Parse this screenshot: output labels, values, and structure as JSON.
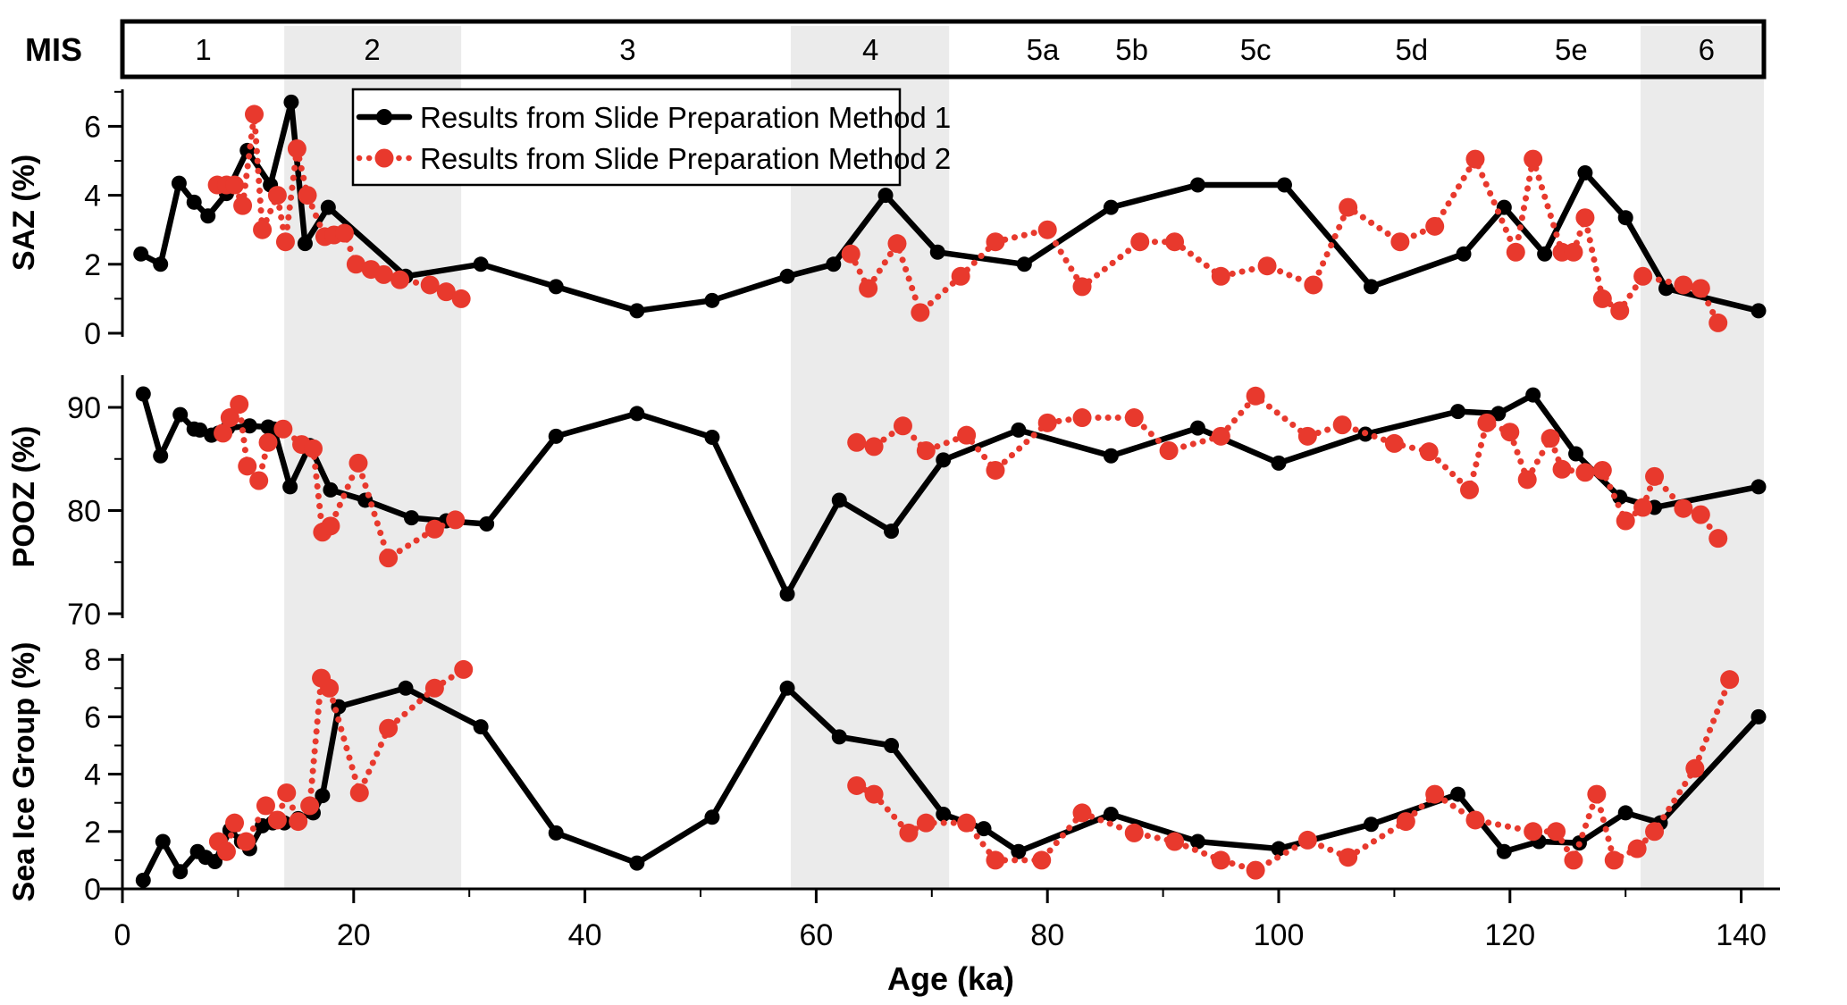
{
  "figure": {
    "mis_bar": {
      "label": "MIS",
      "stages": [
        {
          "label": "1",
          "center_ka": 7.0
        },
        {
          "label": "2",
          "center_ka": 21.6
        },
        {
          "label": "3",
          "center_ka": 43.7
        },
        {
          "label": "4",
          "center_ka": 64.7
        },
        {
          "label": "5a",
          "center_ka": 79.6
        },
        {
          "label": "5b",
          "center_ka": 87.3
        },
        {
          "label": "5c",
          "center_ka": 98.0
        },
        {
          "label": "5d",
          "center_ka": 111.5
        },
        {
          "label": "5e",
          "center_ka": 125.3
        },
        {
          "label": "6",
          "center_ka": 137.0
        }
      ],
      "shaded_stage_bands_ka": [
        [
          14.0,
          29.3
        ],
        [
          57.8,
          71.5
        ],
        [
          131.3,
          142.0
        ]
      ]
    },
    "legend": {
      "items": [
        {
          "series": "method1",
          "label": "Results from Slide Preparation Method 1"
        },
        {
          "series": "method2",
          "label": "Results from Slide Preparation Method 2"
        }
      ]
    },
    "x_axis": {
      "title": "Age (ka)",
      "major_ticks": [
        0,
        20,
        40,
        60,
        80,
        100,
        120,
        140
      ],
      "minor_ticks": [
        10,
        30,
        50,
        70,
        90,
        110,
        130
      ],
      "range_ka": [
        0,
        142
      ]
    },
    "colors": {
      "method1": "#000000",
      "method2": "#e8392d",
      "shaded_band": "#ebebeb",
      "background": "#ffffff"
    }
  },
  "chart_data": [
    {
      "type": "line",
      "title": "SAZ",
      "ylabel": "SAZ (%)",
      "xlabel": "Age (ka)",
      "ylim": [
        0,
        7.2
      ],
      "yticks_major": [
        0,
        2,
        4,
        6
      ],
      "yticks_minor": [
        1,
        3,
        5,
        7
      ],
      "series": [
        {
          "name": "Results from Slide Preparation Method 1",
          "points": [
            [
              1.6,
              2.3
            ],
            [
              3.3,
              2.0
            ],
            [
              4.9,
              4.35
            ],
            [
              6.2,
              3.8
            ],
            [
              7.4,
              3.4
            ],
            [
              9.0,
              4.05
            ],
            [
              10.8,
              5.3
            ],
            [
              12.8,
              4.3
            ],
            [
              14.6,
              6.7
            ],
            [
              15.8,
              2.6
            ],
            [
              17.8,
              3.65
            ],
            [
              24.5,
              1.65
            ],
            [
              31.0,
              2.0
            ],
            [
              37.5,
              1.35
            ],
            [
              44.5,
              0.65
            ],
            [
              51.0,
              0.95
            ],
            [
              57.5,
              1.65
            ],
            [
              61.5,
              2.0
            ],
            [
              66.0,
              4.0
            ],
            [
              70.5,
              2.35
            ],
            [
              78.0,
              2.0
            ],
            [
              85.5,
              3.65
            ],
            [
              93.0,
              4.3
            ],
            [
              100.5,
              4.3
            ],
            [
              108.0,
              1.35
            ],
            [
              116.0,
              2.3
            ],
            [
              119.5,
              3.65
            ],
            [
              123.0,
              2.3
            ],
            [
              126.5,
              4.65
            ],
            [
              130.0,
              3.35
            ],
            [
              133.5,
              1.3
            ],
            [
              141.5,
              0.65
            ]
          ]
        },
        {
          "name": "Results from Slide Preparation Method 2",
          "points": [
            [
              8.2,
              4.3
            ],
            [
              9.0,
              4.3
            ],
            [
              9.7,
              4.3
            ],
            [
              10.4,
              3.7
            ],
            [
              11.4,
              6.35
            ],
            [
              12.1,
              3.0
            ],
            [
              13.4,
              4.0
            ],
            [
              14.1,
              2.65
            ],
            [
              15.1,
              5.35
            ],
            [
              16.0,
              4.0
            ],
            [
              17.5,
              2.8
            ],
            [
              18.3,
              2.85
            ],
            [
              19.2,
              2.9
            ],
            [
              20.2,
              2.0
            ],
            [
              21.5,
              1.85
            ],
            [
              22.6,
              1.7
            ],
            [
              24.0,
              1.55
            ],
            [
              26.6,
              1.4
            ],
            [
              28.0,
              1.2
            ],
            [
              29.3,
              1.0
            ],
            [
              63.0,
              2.3
            ],
            [
              64.5,
              1.3
            ],
            [
              67.0,
              2.6
            ],
            [
              69.0,
              0.6
            ],
            [
              72.5,
              1.65
            ],
            [
              75.5,
              2.65
            ],
            [
              80.0,
              3.0
            ],
            [
              83.0,
              1.35
            ],
            [
              88.0,
              2.65
            ],
            [
              91.0,
              2.65
            ],
            [
              95.0,
              1.65
            ],
            [
              99.0,
              1.95
            ],
            [
              103.0,
              1.4
            ],
            [
              106.0,
              3.65
            ],
            [
              110.5,
              2.65
            ],
            [
              113.5,
              3.1
            ],
            [
              117.0,
              5.05
            ],
            [
              120.5,
              2.35
            ],
            [
              122.0,
              5.05
            ],
            [
              124.5,
              2.35
            ],
            [
              125.5,
              2.35
            ],
            [
              126.5,
              3.35
            ],
            [
              128.0,
              1.0
            ],
            [
              129.5,
              0.65
            ],
            [
              131.5,
              1.65
            ],
            [
              135.0,
              1.4
            ],
            [
              136.5,
              1.3
            ],
            [
              138.0,
              0.3
            ]
          ]
        }
      ]
    },
    {
      "type": "line",
      "title": "POOZ",
      "ylabel": "POOZ (%)",
      "xlabel": "Age (ka)",
      "ylim": [
        69,
        93
      ],
      "yticks_major": [
        90,
        80,
        70
      ],
      "yticks_minor": [
        85,
        75
      ],
      "series": [
        {
          "name": "Results from Slide Preparation Method 1",
          "points": [
            [
              1.8,
              91.3
            ],
            [
              3.3,
              85.3
            ],
            [
              5.0,
              89.3
            ],
            [
              6.2,
              87.9
            ],
            [
              6.7,
              87.8
            ],
            [
              7.7,
              87.3
            ],
            [
              8.3,
              87.5
            ],
            [
              9.1,
              88.0
            ],
            [
              11.0,
              88.2
            ],
            [
              12.6,
              88.1
            ],
            [
              13.1,
              87.9
            ],
            [
              14.5,
              82.3
            ],
            [
              16.2,
              86.3
            ],
            [
              18.0,
              82.0
            ],
            [
              21.0,
              81.0
            ],
            [
              25.0,
              79.3
            ],
            [
              28.0,
              79.0
            ],
            [
              31.5,
              78.7
            ],
            [
              37.5,
              87.2
            ],
            [
              44.5,
              89.4
            ],
            [
              51.0,
              87.1
            ],
            [
              57.5,
              71.9
            ],
            [
              62.0,
              81.0
            ],
            [
              66.5,
              78.0
            ],
            [
              71.0,
              84.9
            ],
            [
              77.5,
              87.8
            ],
            [
              85.5,
              85.3
            ],
            [
              93.0,
              88.0
            ],
            [
              100.0,
              84.6
            ],
            [
              107.5,
              87.4
            ],
            [
              115.5,
              89.6
            ],
            [
              119.0,
              89.4
            ],
            [
              122.0,
              91.2
            ],
            [
              125.7,
              85.5
            ],
            [
              129.5,
              81.3
            ],
            [
              132.5,
              80.3
            ],
            [
              141.5,
              82.3
            ]
          ]
        },
        {
          "name": "Results from Slide Preparation Method 2",
          "points": [
            [
              8.7,
              87.5
            ],
            [
              9.3,
              89.0
            ],
            [
              10.1,
              90.3
            ],
            [
              10.8,
              84.3
            ],
            [
              11.8,
              82.9
            ],
            [
              12.6,
              86.6
            ],
            [
              13.9,
              87.9
            ],
            [
              15.5,
              86.4
            ],
            [
              16.5,
              86.0
            ],
            [
              17.3,
              77.9
            ],
            [
              18.0,
              78.5
            ],
            [
              20.4,
              84.6
            ],
            [
              23.0,
              75.4
            ],
            [
              27.0,
              78.2
            ],
            [
              28.8,
              79.1
            ],
            [
              63.5,
              86.6
            ],
            [
              65.0,
              86.2
            ],
            [
              67.5,
              88.2
            ],
            [
              69.5,
              85.8
            ],
            [
              73.0,
              87.3
            ],
            [
              75.5,
              83.9
            ],
            [
              80.0,
              88.5
            ],
            [
              83.0,
              89.0
            ],
            [
              87.5,
              89.0
            ],
            [
              90.5,
              85.8
            ],
            [
              95.0,
              87.2
            ],
            [
              98.0,
              91.1
            ],
            [
              102.5,
              87.2
            ],
            [
              105.5,
              88.3
            ],
            [
              110.0,
              86.5
            ],
            [
              113.0,
              85.7
            ],
            [
              116.5,
              82.0
            ],
            [
              118.0,
              88.5
            ],
            [
              120.0,
              87.6
            ],
            [
              121.5,
              83.0
            ],
            [
              123.5,
              87.0
            ],
            [
              124.5,
              84.0
            ],
            [
              126.5,
              83.7
            ],
            [
              128.0,
              83.9
            ],
            [
              130.0,
              79.0
            ],
            [
              131.5,
              80.3
            ],
            [
              132.5,
              83.3
            ],
            [
              135.0,
              80.2
            ],
            [
              136.5,
              79.6
            ],
            [
              138.0,
              77.3
            ]
          ]
        }
      ]
    },
    {
      "type": "line",
      "title": "Sea Ice Group",
      "ylabel": "Sea Ice Group (%)",
      "xlabel": "Age (ka)",
      "ylim": [
        0,
        8.2
      ],
      "yticks_major": [
        0,
        2,
        4,
        6,
        8
      ],
      "yticks_minor": [
        1,
        3,
        5,
        7
      ],
      "series": [
        {
          "name": "Results from Slide Preparation Method 1",
          "points": [
            [
              1.8,
              0.3
            ],
            [
              3.5,
              1.65
            ],
            [
              5.0,
              0.6
            ],
            [
              6.5,
              1.3
            ],
            [
              7.2,
              1.1
            ],
            [
              8.0,
              0.95
            ],
            [
              9.3,
              2.05
            ],
            [
              10.3,
              1.65
            ],
            [
              11.0,
              1.4
            ],
            [
              12.1,
              2.2
            ],
            [
              13.0,
              2.3
            ],
            [
              14.0,
              2.3
            ],
            [
              15.2,
              2.45
            ],
            [
              16.5,
              2.65
            ],
            [
              17.3,
              3.25
            ],
            [
              18.7,
              6.35
            ],
            [
              24.5,
              7.0
            ],
            [
              31.0,
              5.65
            ],
            [
              37.5,
              1.95
            ],
            [
              44.5,
              0.9
            ],
            [
              51.0,
              2.5
            ],
            [
              57.5,
              7.0
            ],
            [
              62.0,
              5.3
            ],
            [
              66.5,
              5.0
            ],
            [
              71.0,
              2.6
            ],
            [
              74.5,
              2.1
            ],
            [
              77.5,
              1.3
            ],
            [
              85.5,
              2.6
            ],
            [
              93.0,
              1.65
            ],
            [
              100.0,
              1.4
            ],
            [
              108.0,
              2.25
            ],
            [
              115.5,
              3.3
            ],
            [
              119.5,
              1.3
            ],
            [
              122.5,
              1.65
            ],
            [
              126.0,
              1.6
            ],
            [
              130.0,
              2.65
            ],
            [
              133.0,
              2.3
            ],
            [
              141.5,
              6.0
            ]
          ]
        },
        {
          "name": "Results from Slide Preparation Method 2",
          "points": [
            [
              8.3,
              1.65
            ],
            [
              9.0,
              1.3
            ],
            [
              9.7,
              2.3
            ],
            [
              10.7,
              1.65
            ],
            [
              12.4,
              2.9
            ],
            [
              13.4,
              2.4
            ],
            [
              14.2,
              3.35
            ],
            [
              15.2,
              2.35
            ],
            [
              16.2,
              2.9
            ],
            [
              17.2,
              7.35
            ],
            [
              17.9,
              7.0
            ],
            [
              20.5,
              3.35
            ],
            [
              23.0,
              5.6
            ],
            [
              27.0,
              7.0
            ],
            [
              29.5,
              7.65
            ],
            [
              63.5,
              3.6
            ],
            [
              65.0,
              3.3
            ],
            [
              68.0,
              1.95
            ],
            [
              69.5,
              2.3
            ],
            [
              73.0,
              2.3
            ],
            [
              75.5,
              1.0
            ],
            [
              79.5,
              1.0
            ],
            [
              83.0,
              2.65
            ],
            [
              87.5,
              1.95
            ],
            [
              91.0,
              1.65
            ],
            [
              95.0,
              1.0
            ],
            [
              98.0,
              0.65
            ],
            [
              102.5,
              1.7
            ],
            [
              106.0,
              1.1
            ],
            [
              111.0,
              2.35
            ],
            [
              113.5,
              3.3
            ],
            [
              117.0,
              2.4
            ],
            [
              122.0,
              2.0
            ],
            [
              124.0,
              2.0
            ],
            [
              125.5,
              1.0
            ],
            [
              127.5,
              3.3
            ],
            [
              129.0,
              1.0
            ],
            [
              131.0,
              1.4
            ],
            [
              132.5,
              2.0
            ],
            [
              136.0,
              4.2
            ],
            [
              139.0,
              7.3
            ]
          ]
        }
      ]
    }
  ]
}
